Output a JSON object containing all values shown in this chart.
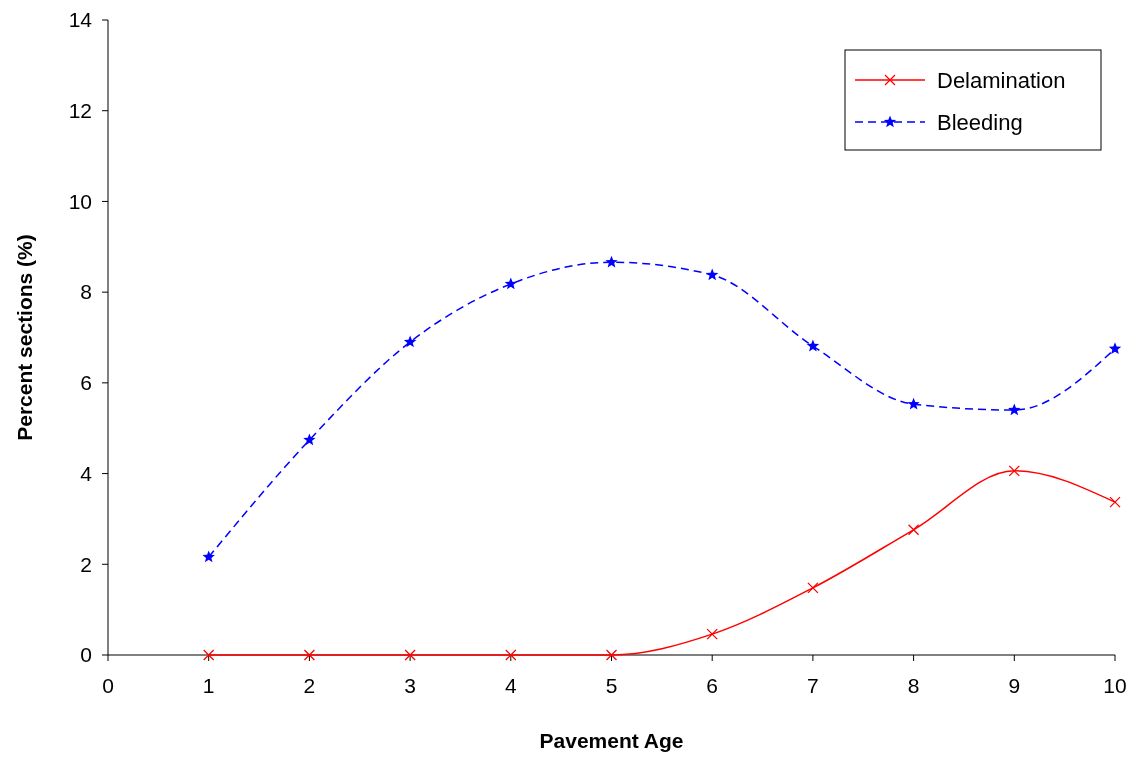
{
  "chart_data": {
    "type": "line",
    "xlabel": "Pavement Age",
    "ylabel": "Percent sections (%)",
    "x": [
      1,
      2,
      3,
      4,
      5,
      6,
      7,
      8,
      9,
      10
    ],
    "xlim": [
      0,
      10
    ],
    "xticks": [
      0,
      1,
      2,
      3,
      4,
      5,
      6,
      7,
      8,
      9,
      10
    ],
    "ylim": [
      0,
      14
    ],
    "yticks": [
      0,
      2,
      4,
      6,
      8,
      10,
      12,
      14
    ],
    "grid": false,
    "legend": "top right",
    "series": [
      {
        "name": "Delamination",
        "color": "#ff0000",
        "marker": "cross",
        "line_style": "solid",
        "values": [
          0,
          0,
          0,
          0,
          0,
          0.46,
          1.48,
          2.76,
          4.06,
          3.37
        ]
      },
      {
        "name": "Bleeding",
        "color": "#0000ff",
        "marker": "star",
        "line_style": "dashed",
        "values": [
          2.16,
          4.74,
          6.9,
          8.18,
          8.66,
          8.38,
          6.81,
          5.53,
          5.4,
          6.75
        ]
      }
    ]
  }
}
